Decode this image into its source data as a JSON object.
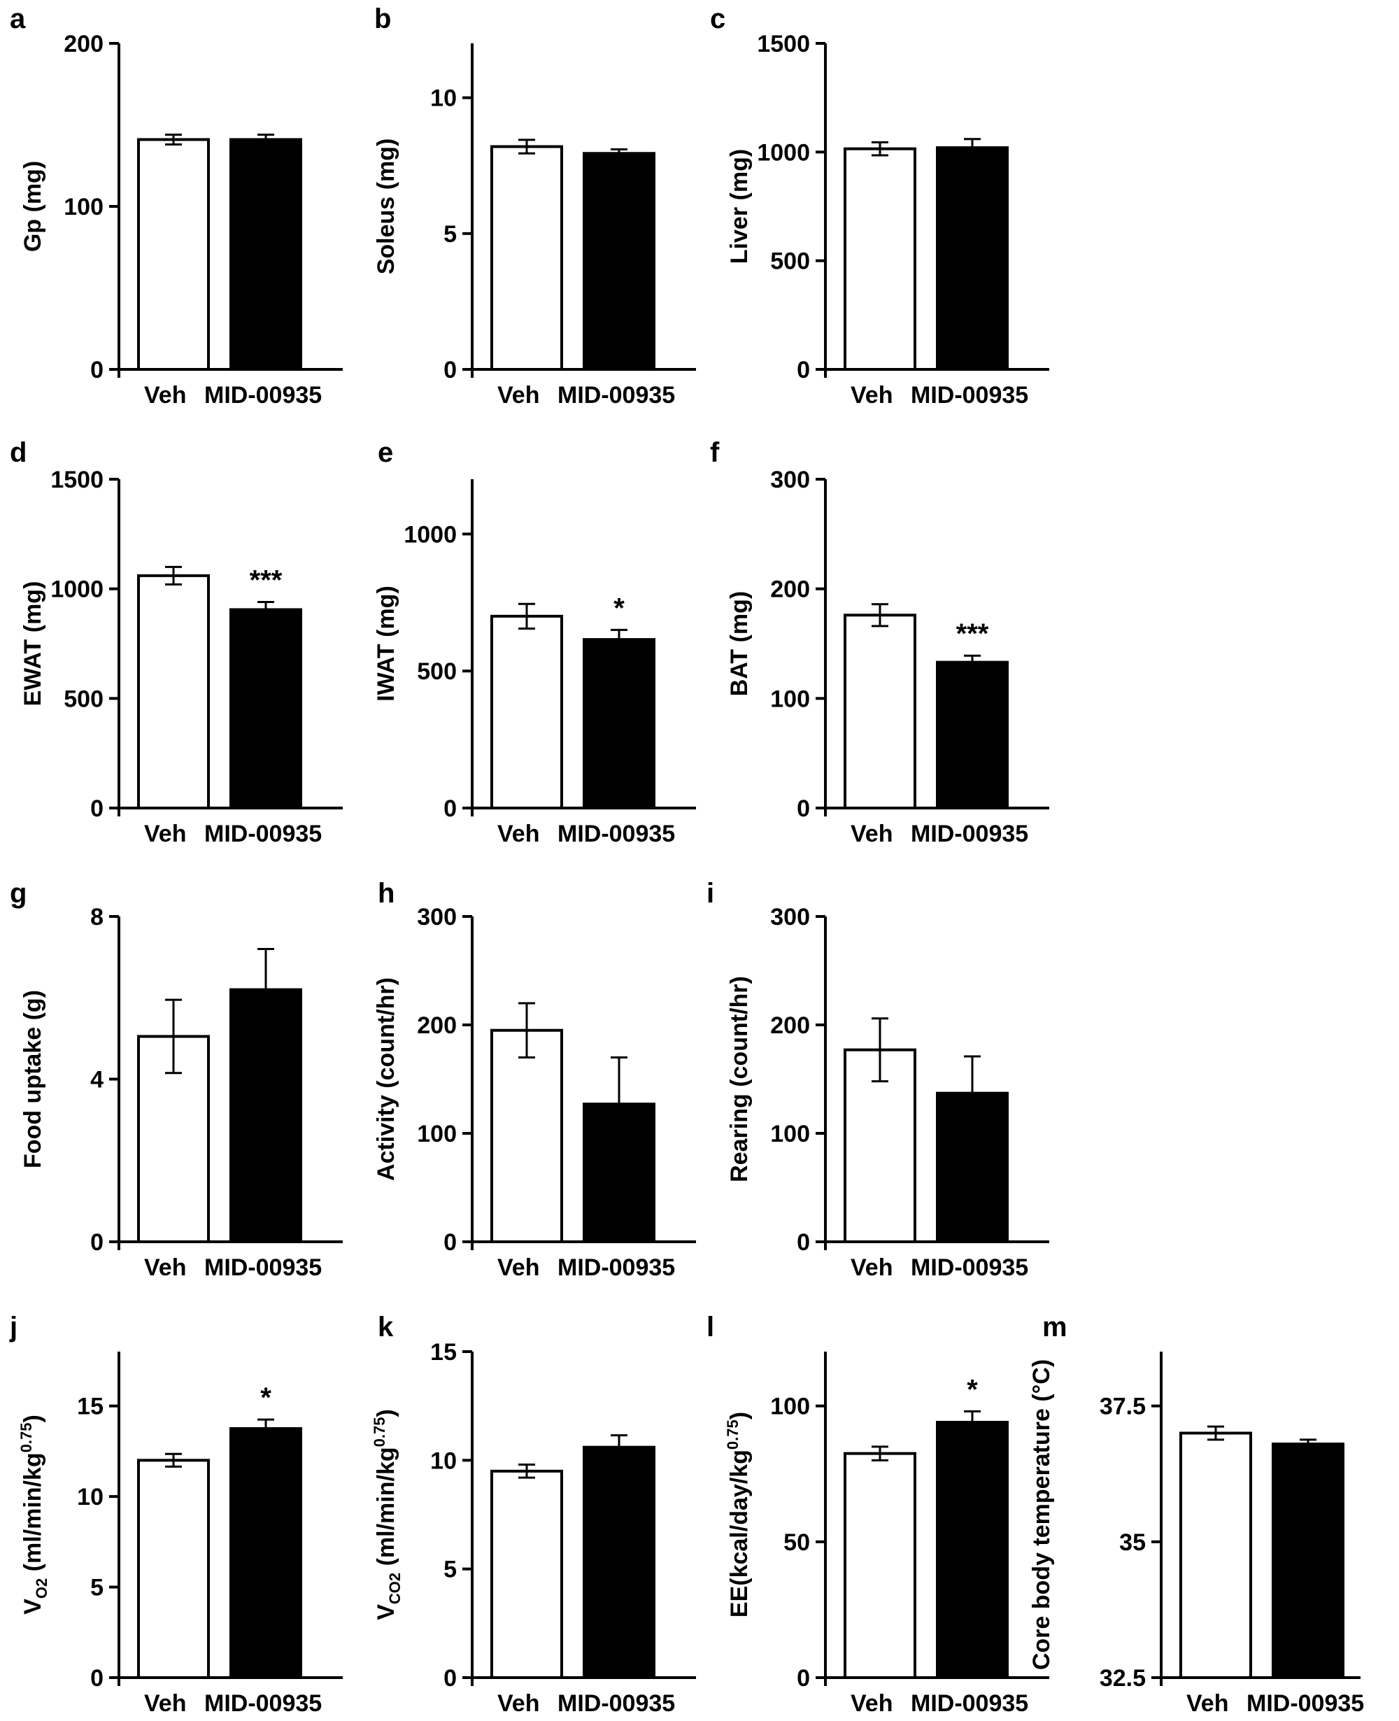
{
  "figure": {
    "categories": [
      "Veh",
      "MID-00935"
    ],
    "bar_fill": [
      "#ffffff",
      "#000000"
    ],
    "axis_color": "#000000"
  },
  "chart_data": [
    {
      "panel": "a",
      "type": "bar",
      "ylabel": "Gp (mg)",
      "categories": [
        "Veh",
        "MID-00935"
      ],
      "values": [
        141,
        141
      ],
      "errors": [
        3,
        3
      ],
      "ylim": [
        0,
        200
      ],
      "yticks": [
        "0",
        "100",
        "200"
      ],
      "significance": [
        "",
        ""
      ]
    },
    {
      "panel": "b",
      "type": "bar",
      "ylabel": "Soleus (mg)",
      "categories": [
        "Veh",
        "MID-00935"
      ],
      "values": [
        8.2,
        7.95
      ],
      "errors": [
        0.25,
        0.15
      ],
      "ylim": [
        0,
        12
      ],
      "yticks": [
        "0",
        "5",
        "10"
      ],
      "significance": [
        "",
        ""
      ]
    },
    {
      "panel": "c",
      "type": "bar",
      "ylabel": "Liver (mg)",
      "categories": [
        "Veh",
        "MID-00935"
      ],
      "values": [
        1015,
        1020
      ],
      "errors": [
        30,
        40
      ],
      "ylim": [
        0,
        1500
      ],
      "yticks": [
        "0",
        "500",
        "1000",
        "1500"
      ],
      "significance": [
        "",
        ""
      ]
    },
    {
      "panel": "d",
      "type": "bar",
      "ylabel": "EWAT (mg)",
      "categories": [
        "Veh",
        "MID-00935"
      ],
      "values": [
        1060,
        905
      ],
      "errors": [
        40,
        35
      ],
      "ylim": [
        0,
        1500
      ],
      "yticks": [
        "0",
        "500",
        "1000",
        "1500"
      ],
      "significance": [
        "",
        "***"
      ]
    },
    {
      "panel": "e",
      "type": "bar",
      "ylabel": "IWAT (mg)",
      "categories": [
        "Veh",
        "MID-00935"
      ],
      "values": [
        700,
        615
      ],
      "errors": [
        45,
        35
      ],
      "ylim": [
        0,
        1200
      ],
      "yticks": [
        "0",
        "500",
        "1000"
      ],
      "significance": [
        "",
        "*"
      ]
    },
    {
      "panel": "f",
      "type": "bar",
      "ylabel": "BAT (mg)",
      "categories": [
        "Veh",
        "MID-00935"
      ],
      "values": [
        176,
        133
      ],
      "errors": [
        10,
        6
      ],
      "ylim": [
        0,
        300
      ],
      "yticks": [
        "0",
        "100",
        "200",
        "300"
      ],
      "significance": [
        "",
        "***"
      ]
    },
    {
      "panel": "g",
      "type": "bar",
      "ylabel": "Food uptake (g)",
      "categories": [
        "Veh",
        "MID-00935"
      ],
      "values": [
        5.05,
        6.2
      ],
      "errors": [
        0.9,
        1.0
      ],
      "ylim": [
        0,
        8
      ],
      "yticks": [
        "0",
        "4",
        "8"
      ],
      "significance": [
        "",
        ""
      ]
    },
    {
      "panel": "h",
      "type": "bar",
      "ylabel": "Activity (count/hr)",
      "categories": [
        "Veh",
        "MID-00935"
      ],
      "values": [
        195,
        127
      ],
      "errors": [
        25,
        43
      ],
      "ylim": [
        0,
        300
      ],
      "yticks": [
        "0",
        "100",
        "200",
        "300"
      ],
      "significance": [
        "",
        ""
      ]
    },
    {
      "panel": "i",
      "type": "bar",
      "ylabel": "Rearing (count/hr)",
      "categories": [
        "Veh",
        "MID-00935"
      ],
      "values": [
        177,
        137
      ],
      "errors": [
        29,
        34
      ],
      "ylim": [
        0,
        300
      ],
      "yticks": [
        "0",
        "100",
        "200",
        "300"
      ],
      "significance": [
        "",
        ""
      ]
    },
    {
      "panel": "j",
      "type": "bar",
      "ylabel": "VO2 (ml/min/kg0.75)",
      "ylabel_main": "V",
      "ylabel_sub": "O2",
      "ylabel_rest": " (ml/min/kg",
      "ylabel_sup": "0.75",
      "ylabel_end": ")",
      "categories": [
        "Veh",
        "MID-00935"
      ],
      "values": [
        12.0,
        13.75
      ],
      "errors": [
        0.35,
        0.5
      ],
      "ylim": [
        0,
        18
      ],
      "yticks": [
        "0",
        "5",
        "10",
        "15"
      ],
      "significance": [
        "",
        "*"
      ]
    },
    {
      "panel": "k",
      "type": "bar",
      "ylabel": "VCO2 (ml/min/kg0.75)",
      "ylabel_main": "V",
      "ylabel_sub": "CO2",
      "ylabel_rest": " (ml/min/kg",
      "ylabel_sup": "0.75",
      "ylabel_end": ")",
      "categories": [
        "Veh",
        "MID-00935"
      ],
      "values": [
        9.5,
        10.6
      ],
      "errors": [
        0.3,
        0.55
      ],
      "ylim": [
        0,
        15
      ],
      "yticks": [
        "0",
        "5",
        "10",
        "15"
      ],
      "significance": [
        "",
        ""
      ]
    },
    {
      "panel": "l",
      "type": "bar",
      "ylabel": "EE(kcal/day/kg0.75)",
      "ylabel_main": "EE(kcal/day/kg",
      "ylabel_sub": "",
      "ylabel_rest": "",
      "ylabel_sup": "0.75",
      "ylabel_end": ")",
      "categories": [
        "Veh",
        "MID-00935"
      ],
      "values": [
        82.5,
        94.0
      ],
      "errors": [
        2.5,
        4.0
      ],
      "ylim": [
        0,
        120
      ],
      "yticks": [
        "0",
        "50",
        "100"
      ],
      "significance": [
        "",
        "*"
      ]
    },
    {
      "panel": "m",
      "type": "bar",
      "ylabel": "Core body temperature (°C)",
      "categories": [
        "Veh",
        "MID-00935"
      ],
      "values": [
        37.0,
        36.8
      ],
      "errors": [
        0.12,
        0.08
      ],
      "ylim": [
        32.5,
        38.5
      ],
      "yticks": [
        "32.5",
        "35",
        "37.5"
      ],
      "significance": [
        "",
        ""
      ]
    }
  ]
}
